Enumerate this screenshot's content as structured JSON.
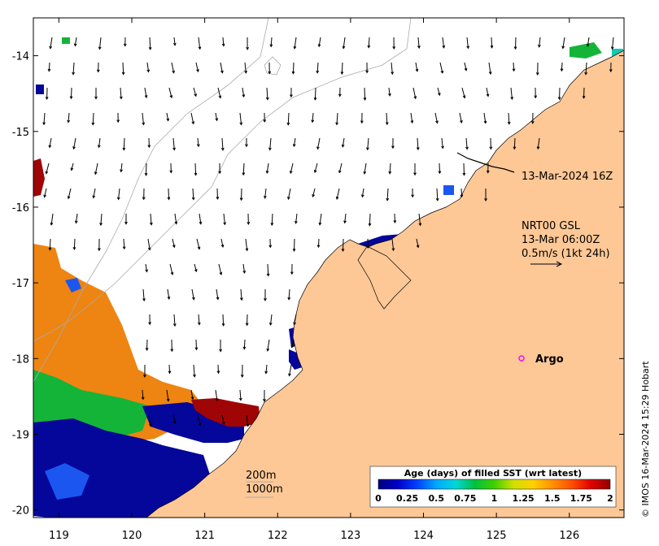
{
  "map": {
    "lon_range": [
      118.65,
      126.75
    ],
    "lat_range": [
      -20.1,
      -13.5
    ],
    "lon_ticks": [
      119,
      120,
      121,
      122,
      123,
      124,
      125,
      126
    ],
    "lon_tick_labels": [
      "119",
      "120",
      "121",
      "122",
      "123",
      "124",
      "125",
      "126"
    ],
    "lat_ticks": [
      -14,
      -15,
      -16,
      -17,
      -18,
      -19,
      -20
    ],
    "lat_tick_labels": [
      "-14",
      "-15",
      "-16",
      "-17",
      "-18",
      "-19",
      "-20"
    ],
    "colors": {
      "land": "#fdc896",
      "ocean": "#ffffff",
      "orange": "#ee8411",
      "navy": "#05079a",
      "blue": "#1c56f0",
      "green": "#14b439",
      "teal": "#12c9b4",
      "darkred": "#9f0505",
      "bathymetry": "#aaaaaa",
      "argo": "#ff00ff"
    }
  },
  "annotations": {
    "track_label": "13-Mar-2024 16Z",
    "product_line1": "NRT00 GSL",
    "product_line2": "13-Mar 06:00Z",
    "product_line3": "0.5m/s (1kt 24h)",
    "argo_label": "Argo",
    "contour_label_200": "200m",
    "contour_label_1000": "1000m"
  },
  "legend": {
    "title": "Age (days) of filled SST (wrt latest)",
    "ticks": [
      0,
      0.25,
      0.5,
      0.75,
      1,
      1.25,
      1.5,
      1.75,
      2
    ],
    "tick_labels": [
      "0",
      "0.25",
      "0.5",
      "0.75",
      "1",
      "1.25",
      "1.5",
      "1.75",
      "2"
    ],
    "range": [
      0,
      2
    ],
    "colors": [
      "#00007f",
      "#0000c8",
      "#0040ff",
      "#00a8ff",
      "#00d8d8",
      "#00c040",
      "#40d000",
      "#d0e000",
      "#ffd000",
      "#ff9000",
      "#ff5000",
      "#e00000",
      "#900000"
    ]
  },
  "credit": "© IMOS 16-Mar-2024 15:29 Hobart"
}
